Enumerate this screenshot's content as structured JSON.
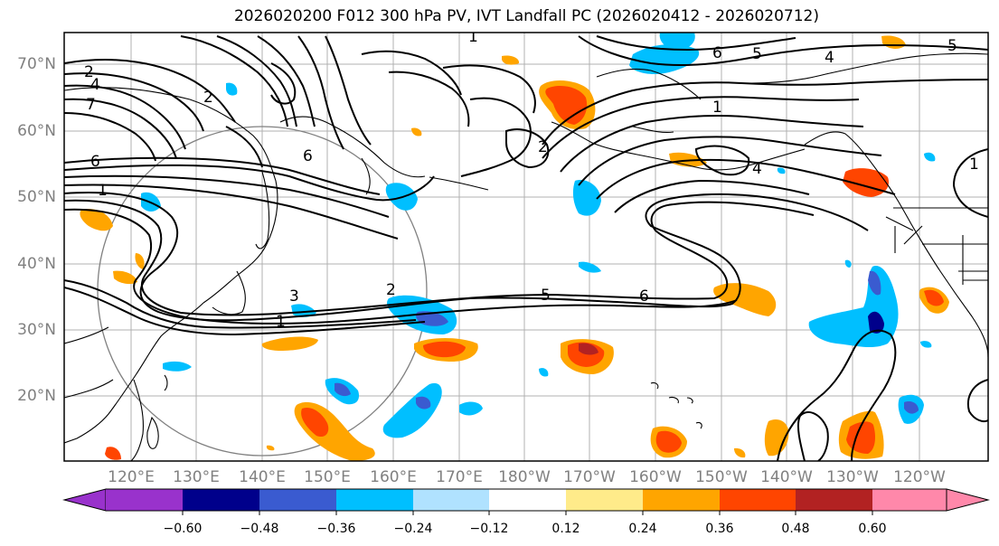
{
  "title": "2026020200 F012 300 hPa PV, IVT Landfall PC (2026020412 - 2026020712)",
  "lat_ticks": [
    "70°N",
    "60°N",
    "50°N",
    "40°N",
    "30°N",
    "20°N"
  ],
  "lon_ticks": [
    "120°E",
    "130°E",
    "140°E",
    "150°E",
    "160°E",
    "170°E",
    "180°W",
    "170°W",
    "160°W",
    "150°W",
    "140°W",
    "130°W",
    "120°W"
  ],
  "contour_labels": [
    "2",
    "4",
    "7",
    "6",
    "1",
    "3",
    "2",
    "1",
    "5",
    "6",
    "6",
    "1",
    "6",
    "5",
    "4",
    "1",
    "4",
    "5",
    "2",
    "2",
    "1"
  ],
  "colorbar": {
    "tick_labels": [
      "−0.60",
      "−0.48",
      "−0.36",
      "−0.24",
      "−0.12",
      "0.12",
      "0.24",
      "0.36",
      "0.48",
      "0.60"
    ],
    "colors": [
      "#9932cc",
      "#00008b",
      "#3a5bd0",
      "#00bfff",
      "#b0e2ff",
      "#ffffff",
      "#ffeb8a",
      "#ffa500",
      "#ff4500",
      "#b22222",
      "#ff88aa"
    ]
  }
}
